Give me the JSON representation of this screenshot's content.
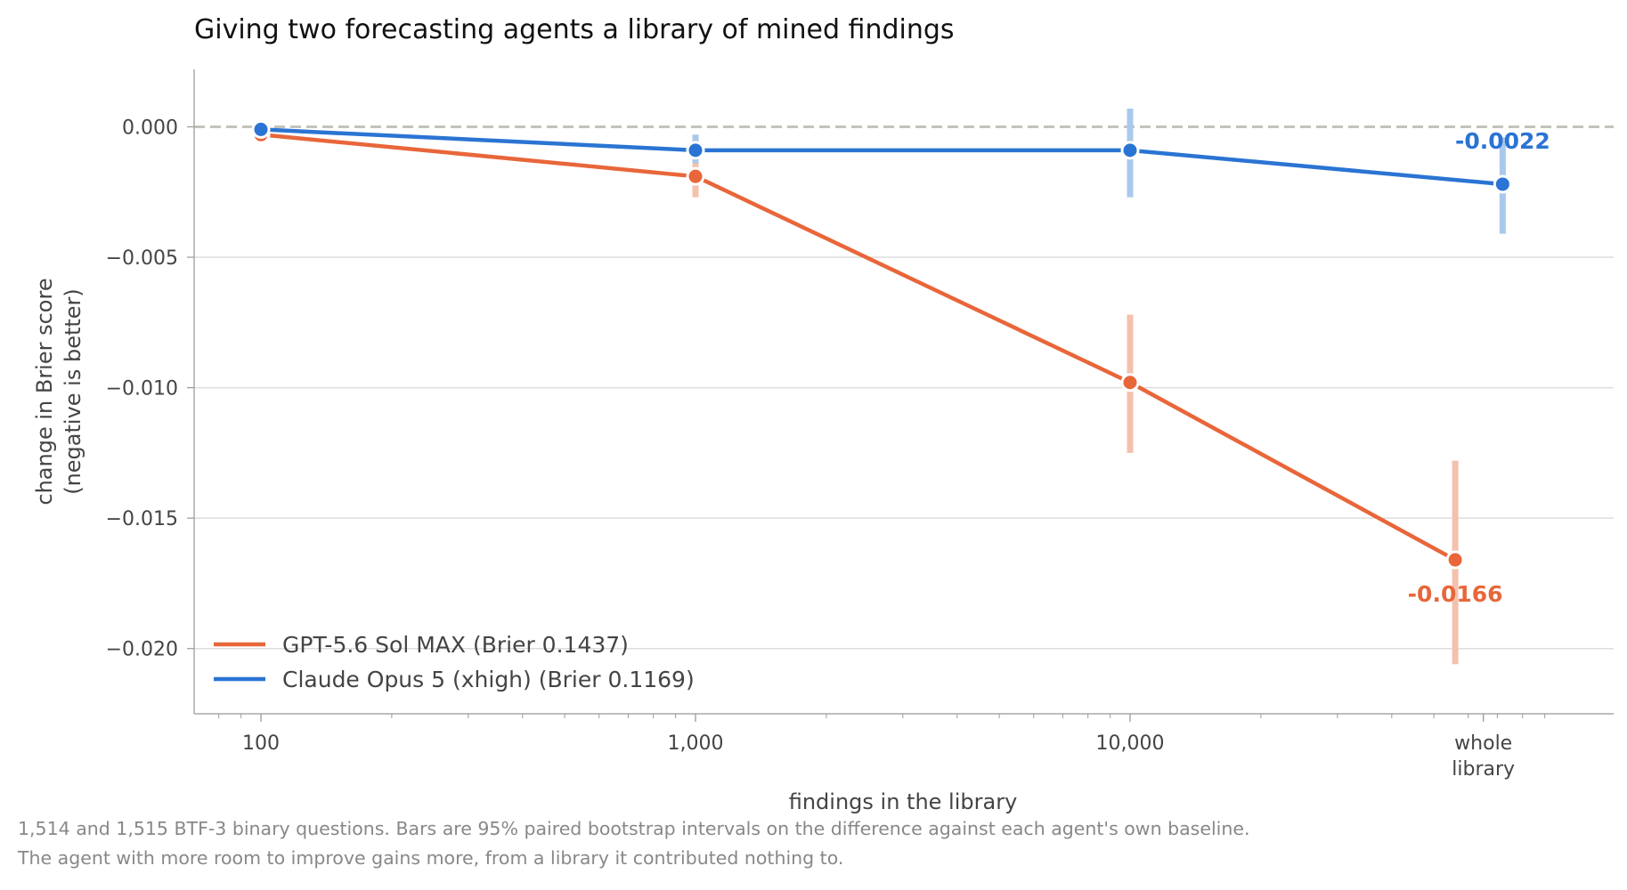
{
  "chart_data": {
    "type": "line",
    "title": "Giving two forecasting agents a library of mined findings",
    "xlabel": "findings in the library",
    "ylabel": [
      "change in Brier score",
      "(negative is better)"
    ],
    "x_scale": "log",
    "x_ticks": [
      {
        "value": 100,
        "label": [
          "100"
        ]
      },
      {
        "value": 1000,
        "label": [
          "1,000"
        ]
      },
      {
        "value": 10000,
        "label": [
          "10,000"
        ]
      },
      {
        "value": 65000,
        "label": [
          "whole",
          "library"
        ]
      }
    ],
    "ylim": [
      -0.0225,
      0.0022
    ],
    "y_ticks": [
      0.0,
      -0.005,
      -0.01,
      -0.015,
      -0.02
    ],
    "y_tick_labels": [
      "0.000",
      "−0.005",
      "−0.010",
      "−0.015",
      "−0.020"
    ],
    "reference_line": 0,
    "grid": "horizontal",
    "legend_position": "lower-left",
    "series": [
      {
        "name": "GPT-5.6 Sol MAX  (Brier 0.1437)",
        "color": "#e8663a",
        "err_color": "#f4c1ad",
        "x": [
          100,
          1000,
          10000,
          56000
        ],
        "y": [
          -0.0003,
          -0.0019,
          -0.0098,
          -0.0166
        ],
        "err_low": [
          -0.0005,
          -0.0027,
          -0.0125,
          -0.0206
        ],
        "err_high": [
          -0.0001,
          -0.0011,
          -0.0072,
          -0.0128
        ],
        "end_label": "-0.0166"
      },
      {
        "name": "Claude Opus 5 (xhigh)  (Brier 0.1169)",
        "color": "#2a74d3",
        "err_color": "#a9c9ec",
        "x": [
          100,
          1000,
          10000,
          72000
        ],
        "y": [
          -0.0001,
          -0.0009,
          -0.0009,
          -0.0022
        ],
        "err_low": [
          -0.0002,
          -0.0014,
          -0.0027,
          -0.0041
        ],
        "err_high": [
          0.0,
          -0.0003,
          0.0007,
          -0.0004
        ],
        "end_label": "-0.0022"
      }
    ]
  },
  "caption": {
    "line1": "1,514 and 1,515 BTF-3 binary questions. Bars are 95% paired bootstrap intervals on the difference against each agent's own baseline.",
    "line2": "The agent with more room to improve gains more, from a library it contributed nothing to."
  }
}
